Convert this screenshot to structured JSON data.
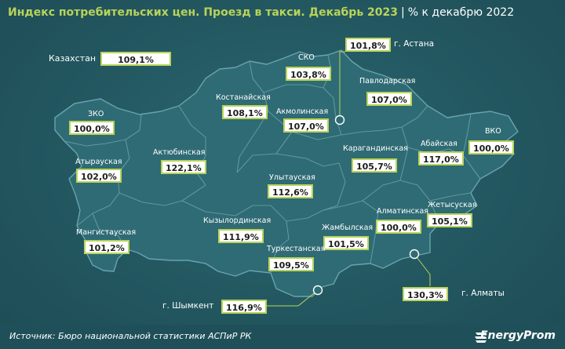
{
  "title": "Индекс потребительских цен. Проезд в такси. Декабрь 2023",
  "separator": "|",
  "subtitle": "% к декабрю 2022",
  "country": {
    "label": "Казахстан",
    "value": "109,1%"
  },
  "regions": [
    {
      "id": "zko",
      "label": "ЗКО",
      "value": "100,0%"
    },
    {
      "id": "atyrau",
      "label": "Атырауская",
      "value": "102,0%"
    },
    {
      "id": "mangistau",
      "label": "Мангистауская",
      "value": "101,2%"
    },
    {
      "id": "aktobe",
      "label": "Актюбинская",
      "value": "122,1%"
    },
    {
      "id": "kostanay",
      "label": "Костанайская",
      "value": "108,1%"
    },
    {
      "id": "sko",
      "label": "СКО",
      "value": "103,8%"
    },
    {
      "id": "akmola",
      "label": "Акмолинская",
      "value": "107,0%"
    },
    {
      "id": "pavlodar",
      "label": "Павлодарская",
      "value": "107,0%"
    },
    {
      "id": "karaganda",
      "label": "Карагандинская",
      "value": "105,7%"
    },
    {
      "id": "abai",
      "label": "Абайская",
      "value": "117,0%"
    },
    {
      "id": "vko",
      "label": "ВКО",
      "value": "100,0%"
    },
    {
      "id": "ulytau",
      "label": "Улытауская",
      "value": "112,6%"
    },
    {
      "id": "kyzylorda",
      "label": "Кызылординская",
      "value": "111,9%"
    },
    {
      "id": "almaty_reg",
      "label": "Алматинская",
      "value": "100,0%"
    },
    {
      "id": "zhetysu",
      "label": "Жетысуская",
      "value": "105,1%"
    },
    {
      "id": "zhambyl",
      "label": "Жамбылская",
      "value": "101,5%"
    },
    {
      "id": "turkestan",
      "label": "Туркестанская",
      "value": "109,5%"
    }
  ],
  "cities": [
    {
      "id": "astana",
      "label": "г. Астана",
      "value": "101,8%"
    },
    {
      "id": "almaty",
      "label": "г. Алматы",
      "value": "130,3%"
    },
    {
      "id": "shymkent",
      "label": "г. Шымкент",
      "value": "116,9%"
    }
  ],
  "source": "Источник: Бюро национальной статистики АСПиР РК",
  "brand": "EnergyProm",
  "colors": {
    "background": "#21545e",
    "land": "#2f6b74",
    "border": "#5e97a0",
    "accent": "#b9d35a"
  }
}
